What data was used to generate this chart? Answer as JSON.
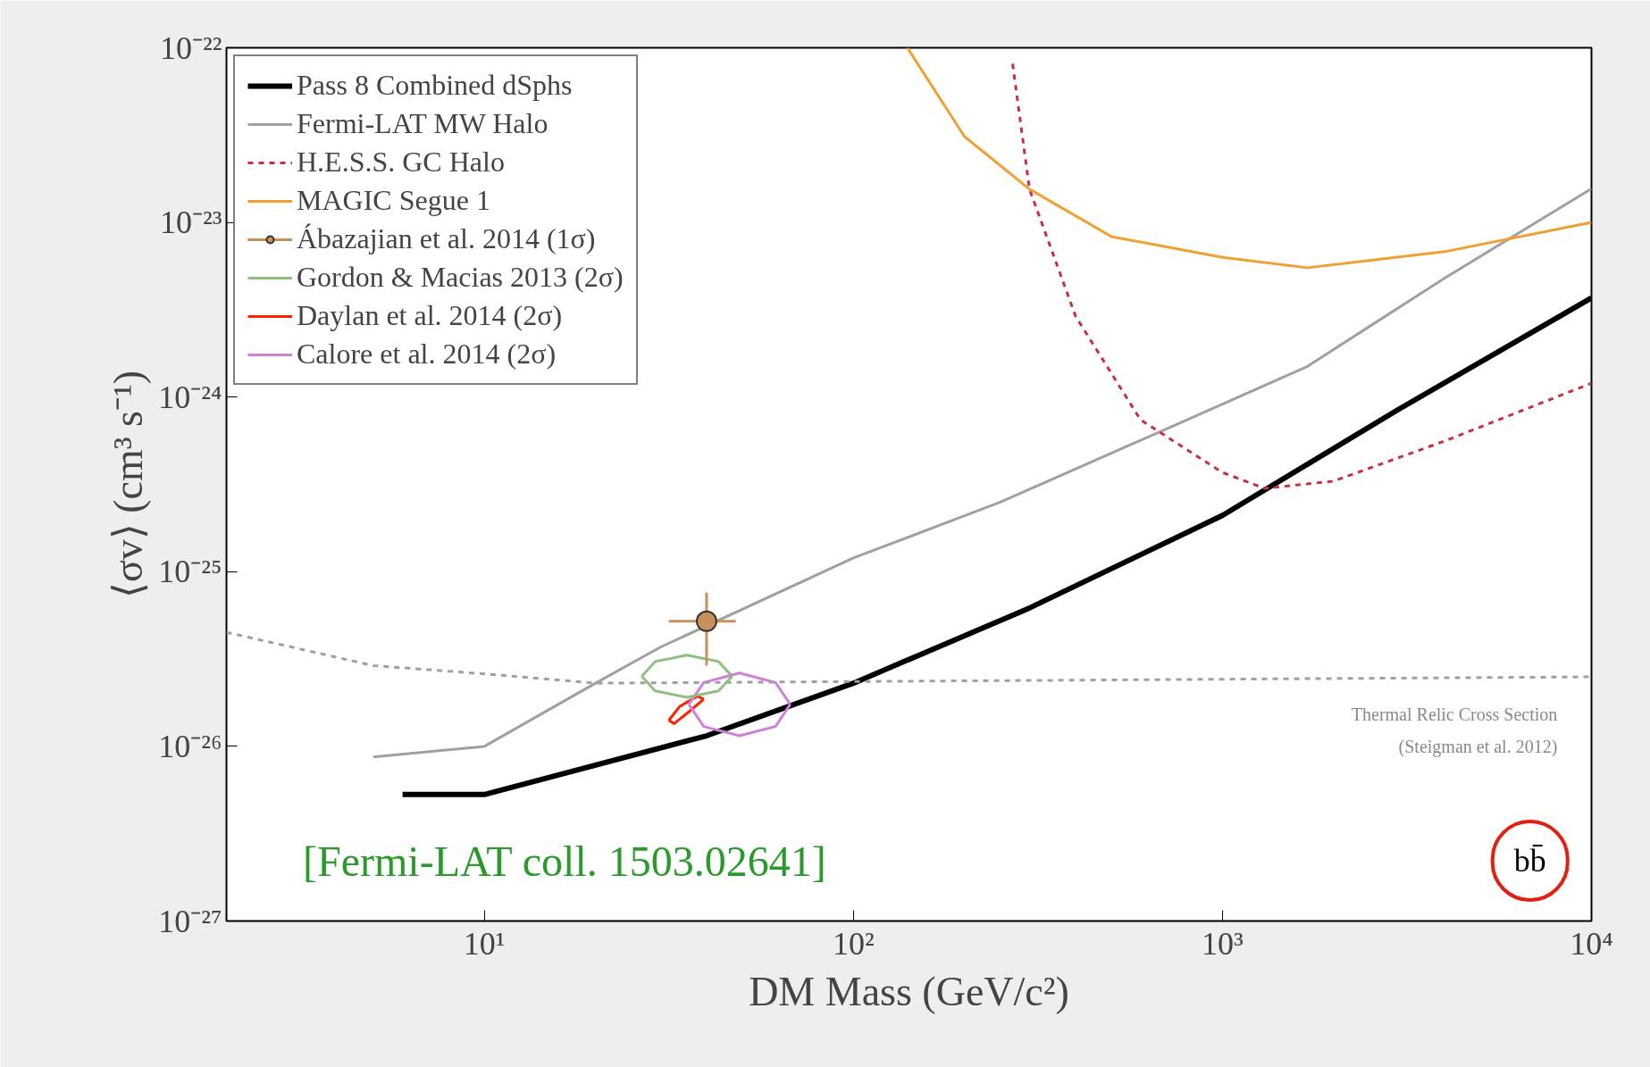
{
  "chart_data": {
    "type": "line",
    "xlabel": "DM Mass (GeV/c²)",
    "ylabel": "⟨σv⟩ (cm³ s⁻¹)",
    "log": "xy",
    "legend": "top left",
    "grid": false,
    "xlim": [
      2,
      10000
    ],
    "ylim": [
      1e-27,
      1e-22
    ],
    "xticks": [
      {
        "value": 10,
        "label": "10¹"
      },
      {
        "value": 100,
        "label": "10²"
      },
      {
        "value": 1000,
        "label": "10³"
      },
      {
        "value": 10000,
        "label": "10⁴"
      }
    ],
    "yticks": [
      {
        "value": 1e-27,
        "label": "10⁻²⁷"
      },
      {
        "value": 1e-26,
        "label": "10⁻²⁶"
      },
      {
        "value": 1e-25,
        "label": "10⁻²⁵"
      },
      {
        "value": 1e-24,
        "label": "10⁻²⁴"
      },
      {
        "value": 1e-23,
        "label": "10⁻²³"
      },
      {
        "value": 1e-22,
        "label": "10⁻²²"
      }
    ],
    "series": [
      {
        "name": "Pass 8 Combined dSphs",
        "color": "#000000",
        "x": [
          6,
          10,
          40,
          100,
          300,
          1000,
          3000,
          10000
        ],
        "values": [
          5.3e-27,
          5.3e-27,
          1.15e-26,
          2.3e-26,
          6.2e-26,
          2.1e-25,
          8.5e-25,
          3.7e-24
        ]
      },
      {
        "name": "Fermi-LAT MW Halo",
        "color": "#a0a0a0",
        "x": [
          5,
          10,
          20,
          30,
          100,
          250,
          800,
          1700,
          4000,
          10000
        ],
        "values": [
          8.7e-27,
          1e-26,
          2.3e-26,
          3.7e-26,
          1.2e-25,
          2.5e-25,
          7.4e-25,
          1.5e-24,
          4.8e-24,
          1.56e-23
        ]
      },
      {
        "name": "H.E.S.S. GC Halo",
        "color": "#c83040",
        "line_style": "dashed",
        "x": [
          270,
          300,
          400,
          600,
          1000,
          1300,
          2000,
          4000,
          10000
        ],
        "values": [
          8.1e-23,
          1.55e-23,
          2.9e-24,
          7.4e-25,
          3.7e-25,
          3e-25,
          3.3e-25,
          5.6e-25,
          1.2e-24
        ]
      },
      {
        "name": "MAGIC Segue 1",
        "color": "#f0a030",
        "x": [
          140,
          200,
          300,
          500,
          1000,
          1700,
          4000,
          10000
        ],
        "values": [
          1e-22,
          3.1e-23,
          1.55e-23,
          8.3e-24,
          6.3e-24,
          5.5e-24,
          6.8e-24,
          1e-23
        ]
      },
      {
        "name": "Ábazajian et al. 2014 (1σ)",
        "type": "scatter",
        "marker": "circle",
        "color": "#c8905a",
        "x": [
          40
        ],
        "values": [
          5.2e-26
        ],
        "errors": [
          [
            2.9e-26,
            7.6e-26
          ]
        ],
        "xerrors": [
          [
            31.6,
            48
          ]
        ]
      },
      {
        "name": "Gordon & Macias 2013 (2σ)",
        "color": "#8fbf7f",
        "x": [
          26.7,
          29.0,
          35.4,
          43.1,
          46.9
        ],
        "values": [
          2.52e-26,
          3.06e-26,
          3.33e-26,
          3.06e-26,
          2.52e-26
        ]
      },
      {
        "name": "Daylan et al. 2014 (2σ)",
        "color": "#ff2200",
        "x": [
          31.6,
          33.8,
          37.8,
          39.3
        ],
        "values": [
          1.41e-26,
          1.69e-26,
          1.94e-26,
          1.86e-26
        ]
      },
      {
        "name": "Calore et al. 2014 (2σ)",
        "color": "#d080d8",
        "x": [
          35.8,
          39.3,
          49.1,
          61.5,
          67.4
        ],
        "values": [
          1.74e-26,
          2.32e-26,
          2.63e-26,
          2.32e-26,
          1.74e-26
        ]
      },
      {
        "color": "#a0a0a0",
        "line_style": "dashed",
        "x": [
          2,
          5,
          10,
          20,
          10000
        ],
        "values": [
          4.5e-26,
          2.9e-26,
          2.6e-26,
          2.3e-26,
          2.5e-26
        ]
      },
      {
        "color": "#8fbf7f",
        "x": [
          26.7,
          29.0,
          35.4,
          43.1,
          46.9
        ],
        "values": [
          2.52e-26,
          2.08e-26,
          1.91e-26,
          2.08e-26,
          2.52e-26
        ]
      },
      {
        "color": "#ff2200",
        "x": [
          31.6,
          32.7,
          36.1,
          39.3
        ],
        "values": [
          1.41e-26,
          1.35e-26,
          1.6e-26,
          1.86e-26
        ]
      },
      {
        "color": "#d080d8",
        "x": [
          35.8,
          39.3,
          49.1,
          61.5,
          67.4
        ],
        "values": [
          1.74e-26,
          1.3e-26,
          1.15e-26,
          1.3e-26,
          1.74e-26
        ]
      }
    ],
    "annotations": [
      "Thermal Relic Cross Section",
      "(Steigman et al. 2012)",
      "[Fermi-LAT coll. 1503.02641]",
      "bb̄"
    ]
  }
}
